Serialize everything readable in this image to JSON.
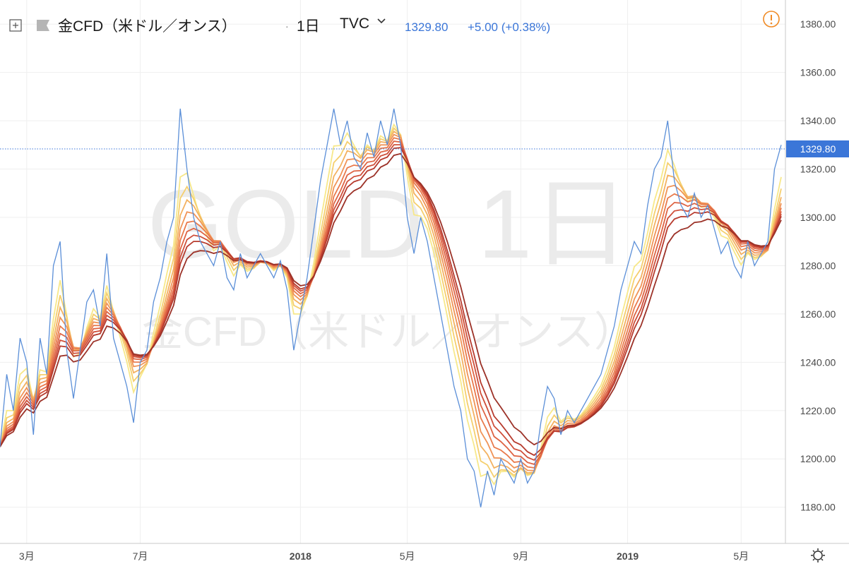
{
  "header": {
    "expand_icon": "expand-square-icon",
    "flag_icon": "symbol-flag-icon",
    "symbol": "金CFD（米ドル／オンス）",
    "separator": "·",
    "interval": "1日",
    "exchange": "TVC",
    "dropdown_icon": "chevron-down-icon",
    "last_price": "1329.80",
    "change": "+5.00 (+0.38%)",
    "alert_icon": "exclamation-circle-icon",
    "settings_icon": "gear-icon"
  },
  "watermark": {
    "main": "GOLD, 1日",
    "sub": "金CFD（米ドル／オンス）"
  },
  "colors": {
    "price_line": "#5b8fd8",
    "price_label_bg": "#3b76d8",
    "alert": "#f08a24",
    "ribbon": [
      "#f7e88a",
      "#f5cf6e",
      "#f3b160",
      "#f09356",
      "#e97a4c",
      "#de6444",
      "#cf4f3a",
      "#b73b2e",
      "#9c3228"
    ]
  },
  "chart_data": {
    "type": "line",
    "title": "金CFD（米ドル／オンス）",
    "ylim": [
      1165,
      1390
    ],
    "y_ticks": [
      "1180.00",
      "1200.00",
      "1220.00",
      "1240.00",
      "1260.00",
      "1280.00",
      "1300.00",
      "1320.00",
      "1340.00",
      "1360.00",
      "1380.00"
    ],
    "x_ticks": [
      {
        "label": "3月",
        "t": 4,
        "bold": false
      },
      {
        "label": "7月",
        "t": 21,
        "bold": false
      },
      {
        "label": "2018",
        "t": 45,
        "bold": true
      },
      {
        "label": "5月",
        "t": 61,
        "bold": false
      },
      {
        "label": "9月",
        "t": 78,
        "bold": false
      },
      {
        "label": "2019",
        "t": 94,
        "bold": true
      },
      {
        "label": "5月",
        "t": 111,
        "bold": false
      }
    ],
    "grid": true,
    "last_value": "1329.80",
    "series": [
      {
        "values": [
          1205,
          1235,
          1220,
          1250,
          1240,
          1210,
          1250,
          1235,
          1280,
          1290,
          1245,
          1225,
          1245,
          1265,
          1270,
          1255,
          1285,
          1250,
          1240,
          1230,
          1215,
          1240,
          1245,
          1265,
          1275,
          1290,
          1300,
          1345,
          1320,
          1300,
          1290,
          1285,
          1280,
          1290,
          1275,
          1270,
          1285,
          1275,
          1280,
          1285,
          1280,
          1275,
          1282,
          1270,
          1245,
          1260,
          1275,
          1295,
          1315,
          1330,
          1345,
          1330,
          1340,
          1325,
          1320,
          1335,
          1325,
          1340,
          1330,
          1345,
          1330,
          1300,
          1285,
          1300,
          1290,
          1275,
          1260,
          1245,
          1230,
          1220,
          1200,
          1195,
          1180,
          1195,
          1185,
          1200,
          1195,
          1190,
          1200,
          1190,
          1195,
          1215,
          1230,
          1225,
          1210,
          1220,
          1215,
          1220,
          1225,
          1230,
          1235,
          1245,
          1255,
          1270,
          1280,
          1290,
          1285,
          1305,
          1320,
          1325,
          1340,
          1315,
          1305,
          1300,
          1310,
          1300,
          1305,
          1295,
          1285,
          1290,
          1280,
          1275,
          1290,
          1280,
          1285,
          1290,
          1320,
          1330
        ]
      }
    ]
  }
}
